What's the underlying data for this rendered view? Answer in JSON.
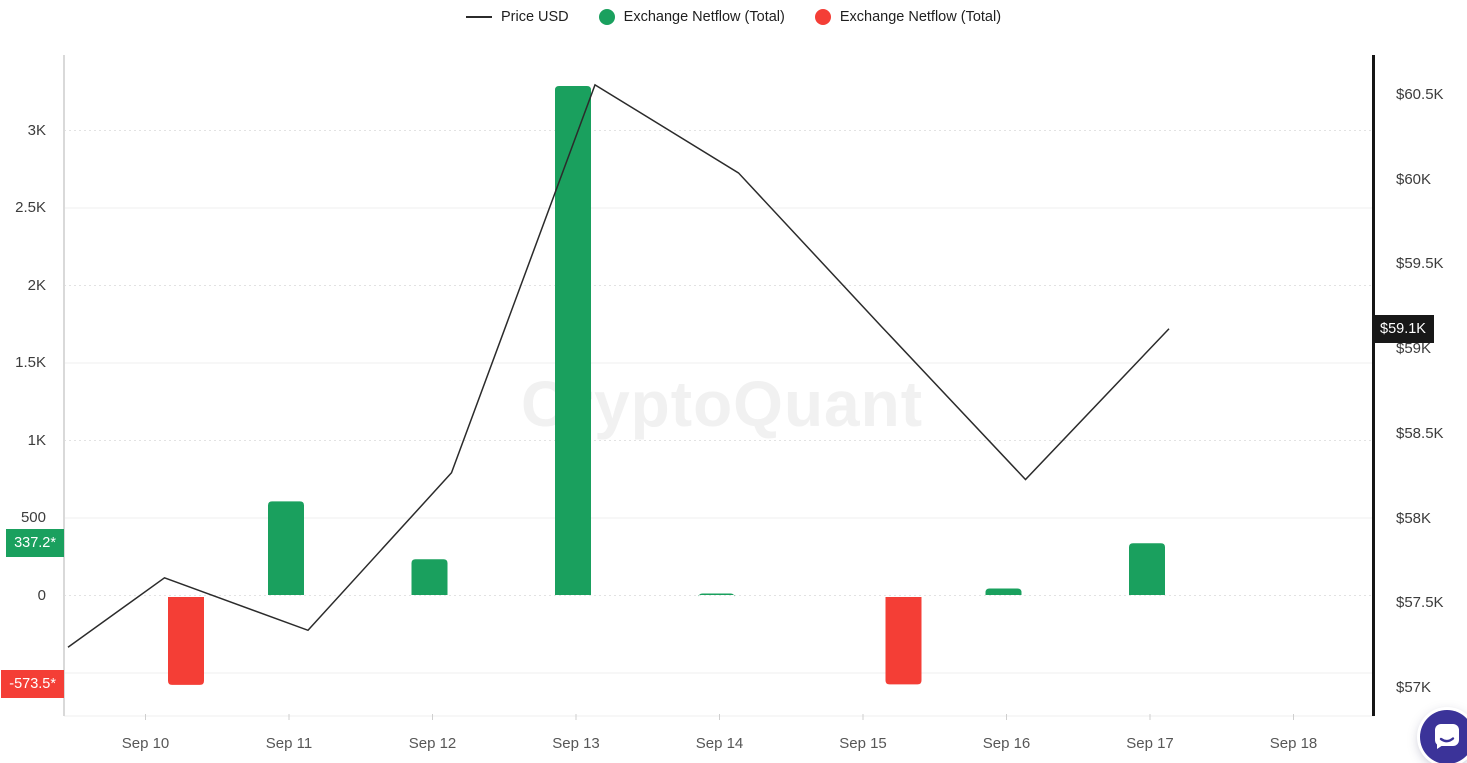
{
  "watermark": "CryptoQuant",
  "legend": {
    "items": [
      {
        "label": "Price USD",
        "swatch": "line",
        "color": "#2b2b2b"
      },
      {
        "label": "Exchange Netflow (Total)",
        "swatch": "dot",
        "color": "#1aa05e"
      },
      {
        "label": "Exchange Netflow (Total)",
        "swatch": "dot",
        "color": "#f43e36"
      }
    ]
  },
  "left_axis": {
    "ticks": [
      {
        "label": "3K",
        "value": 3000,
        "style": "dotted"
      },
      {
        "label": "2.5K",
        "value": 2500,
        "style": "solid"
      },
      {
        "label": "2K",
        "value": 2000,
        "style": "dotted"
      },
      {
        "label": "1.5K",
        "value": 1500,
        "style": "solid"
      },
      {
        "label": "1K",
        "value": 1000,
        "style": "dotted"
      },
      {
        "label": "500",
        "value": 500,
        "style": "solid"
      },
      {
        "label": "0",
        "value": 0,
        "style": "dotted"
      },
      {
        "label": "",
        "value": -500,
        "style": "solid"
      }
    ],
    "badges": [
      {
        "label": "337.2*",
        "value": 337.2,
        "color": "#1aa05e"
      },
      {
        "label": "-573.5*",
        "value": -573.5,
        "color": "#f43e36"
      }
    ]
  },
  "right_axis": {
    "ticks": [
      {
        "label": "$60.5K",
        "value": 60500
      },
      {
        "label": "$60K",
        "value": 60000
      },
      {
        "label": "$59.5K",
        "value": 59500
      },
      {
        "label": "$59K",
        "value": 59000
      },
      {
        "label": "$58.5K",
        "value": 58500
      },
      {
        "label": "$58K",
        "value": 58000
      },
      {
        "label": "$57.5K",
        "value": 57500
      },
      {
        "label": "$57K",
        "value": 57000
      }
    ],
    "badge": {
      "label": "$59.1K",
      "value": 59120,
      "bg": "#181818"
    }
  },
  "x_axis": {
    "labels": [
      "Sep 10",
      "Sep 11",
      "Sep 12",
      "Sep 13",
      "Sep 14",
      "Sep 15",
      "Sep 16",
      "Sep 17",
      "Sep 18"
    ]
  },
  "chart_data": {
    "type": "bar+line",
    "title": "",
    "categories": [
      "Sep 10",
      "Sep 11",
      "Sep 12",
      "Sep 13",
      "Sep 14",
      "Sep 15",
      "Sep 16",
      "Sep 17",
      "Sep 18"
    ],
    "series": [
      {
        "name": "Price USD",
        "type": "line",
        "axis": "right",
        "color": "#2b2b2b",
        "edge_start_price": 57240,
        "values": [
          57650,
          57340,
          58270,
          60560,
          60040,
          59130,
          58230,
          59120,
          null
        ]
      },
      {
        "name": "Exchange Netflow (Total)",
        "type": "bar",
        "axis": "left",
        "color": "#1aa05e",
        "values": [
          null,
          607,
          234,
          3287,
          13,
          null,
          45,
          337.2,
          null
        ]
      },
      {
        "name": "Exchange Netflow (Total)",
        "type": "bar",
        "axis": "left",
        "color": "#f43e36",
        "values": [
          -577,
          null,
          null,
          null,
          null,
          -573.5,
          null,
          null,
          null
        ]
      }
    ],
    "left_axis_range": [
      -700,
      3400
    ],
    "right_axis_range": [
      56900,
      60700
    ],
    "grid": "horizontal-faint",
    "legend_position": "top-center"
  }
}
